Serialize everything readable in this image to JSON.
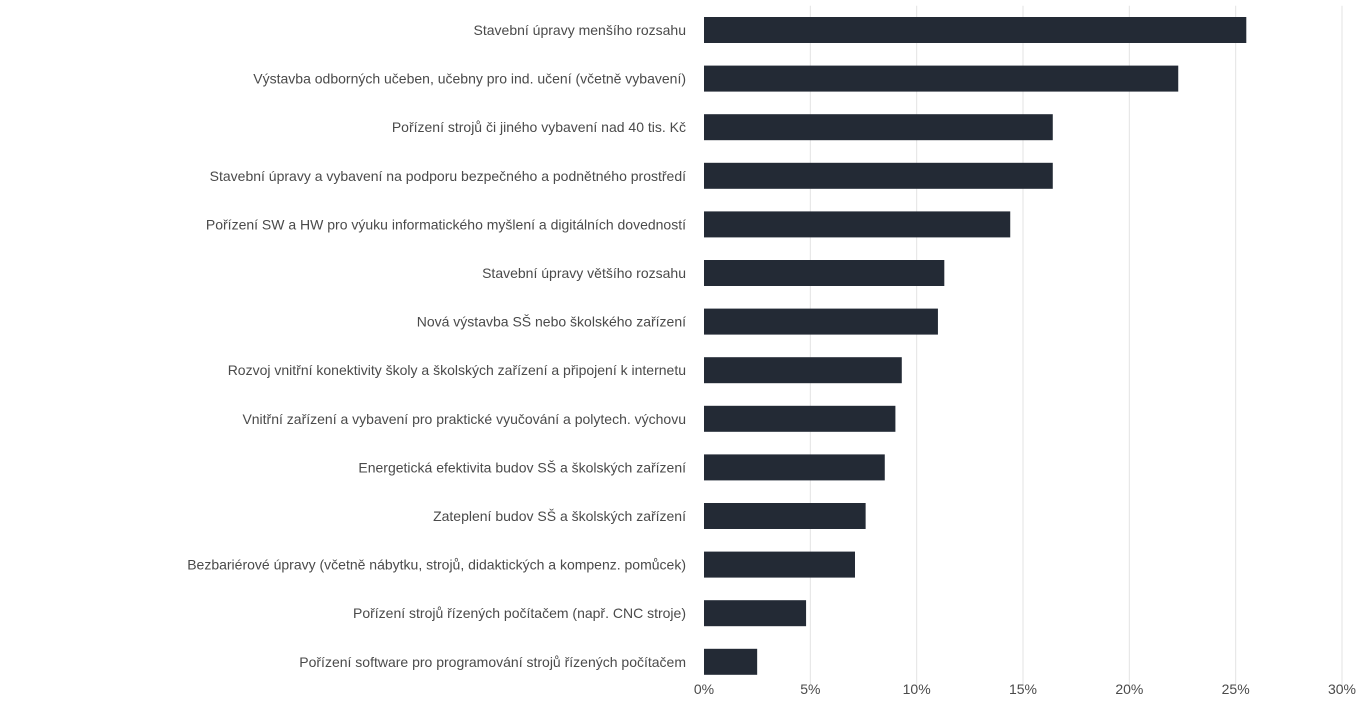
{
  "chart_data": {
    "type": "bar",
    "orientation": "horizontal",
    "categories": [
      "Stavební úpravy menšího rozsahu",
      "Výstavba odborných učeben, učebny pro ind. učení (včetně vybavení)",
      "Pořízení strojů či jiného vybavení nad 40 tis. Kč",
      "Stavební úpravy a vybavení na podporu bezpečného a podnětného prostředí",
      "Pořízení SW a HW pro výuku informatického myšlení a digitálních dovedností",
      "Stavební úpravy většího rozsahu",
      "Nová výstavba SŠ nebo školského zařízení",
      "Rozvoj vnitřní konektivity školy a školských zařízení a připojení k internetu",
      "Vnitřní zařízení a vybavení pro praktické vyučování a polytech. výchovu",
      "Energetická efektivita budov SŠ a školských zařízení",
      "Zateplení budov SŠ a školských zařízení",
      "Bezbariérové úpravy (včetně nábytku, strojů, didaktických a kompenz. pomůcek)",
      "Pořízení strojů řízených počítačem (např. CNC stroje)",
      "Pořízení software pro programování strojů řízených počítačem"
    ],
    "values": [
      25.5,
      22.3,
      16.4,
      16.4,
      14.4,
      11.3,
      11.0,
      9.3,
      9.0,
      8.5,
      7.6,
      7.1,
      4.8,
      2.5
    ],
    "xlim": [
      0,
      30
    ],
    "xticks": [
      0,
      5,
      10,
      15,
      20,
      25,
      30
    ],
    "xtick_labels": [
      "0%",
      "5%",
      "10%",
      "15%",
      "20%",
      "25%",
      "30%"
    ],
    "title": "",
    "xlabel": "",
    "ylabel": "",
    "grid": "vertical",
    "legend": "none",
    "bar_color": "#232a35"
  }
}
